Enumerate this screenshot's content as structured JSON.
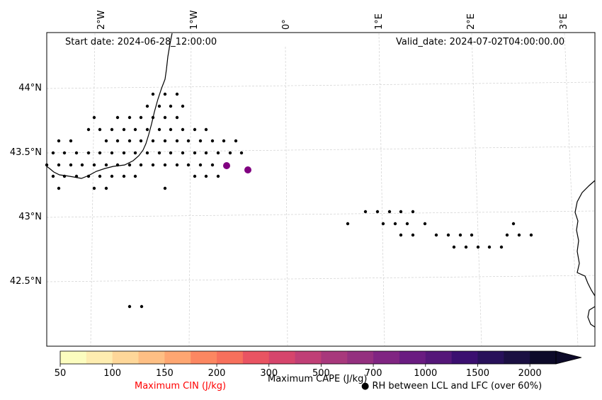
{
  "map": {
    "start_date": "Start date: 2024-06-28_12:00:00",
    "valid_date": "Valid_date: 2024-07-02T04:00:00.00",
    "lon_labels": [
      "2°W",
      "1°W",
      "0°",
      "1°E",
      "2°E",
      "3°E"
    ],
    "lat_labels": [
      "44°N",
      "43.5°N",
      "43°N",
      "42.5°N"
    ]
  },
  "colorbar": {
    "ticks": [
      "50",
      "100",
      "150",
      "200",
      "300",
      "500",
      "700",
      "1000",
      "1500",
      "2000"
    ],
    "colors": [
      "#fcfdbf",
      "#feedb0",
      "#fed799",
      "#febf84",
      "#fea671",
      "#fc8761",
      "#f7705c",
      "#e95462",
      "#d6456c",
      "#c03f76",
      "#a8387c",
      "#94307f",
      "#802582",
      "#6a1c81",
      "#551779",
      "#3b0f70",
      "#28115a",
      "#1b1042",
      "#0d0a29"
    ],
    "cape_label": "Maximum CAPE (J/kg)",
    "cin_label": "Maximum CIN (J/kg)",
    "cin_color": "#ff0000",
    "rh_label": "RH between LCL and LFC (over 60%)"
  },
  "markers": {
    "cin_color": "#800080"
  }
}
